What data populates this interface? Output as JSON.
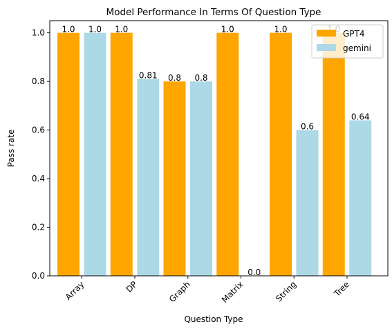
{
  "chart_data": {
    "type": "bar",
    "title": "Model Performance In Terms Of Question Type",
    "xlabel": "Question Type",
    "ylabel": "Pass rate",
    "categories": [
      "Array",
      "DP",
      "Graph",
      "Matrix",
      "String",
      "Tree"
    ],
    "series": [
      {
        "name": "GPT4",
        "color": "#ffa500",
        "values": [
          1.0,
          1.0,
          0.8,
          1.0,
          1.0,
          1.0
        ],
        "labels": [
          "1.0",
          "1.0",
          "0.8",
          "1.0",
          "1.0",
          "1.0"
        ]
      },
      {
        "name": "gemini",
        "color": "#add8e6",
        "values": [
          1.0,
          0.81,
          0.8,
          0.0,
          0.6,
          0.64
        ],
        "labels": [
          "1.0",
          "0.81",
          "0.8",
          "0.0",
          "0.6",
          "0.64"
        ]
      }
    ],
    "ylim": [
      0,
      1.05
    ],
    "yticks": [
      0.0,
      0.2,
      0.4,
      0.6,
      0.8,
      1.0
    ],
    "ytick_labels": [
      "0.0",
      "0.2",
      "0.4",
      "0.6",
      "0.8",
      "1.0"
    ],
    "grid": false,
    "legend_position": "top-right"
  }
}
